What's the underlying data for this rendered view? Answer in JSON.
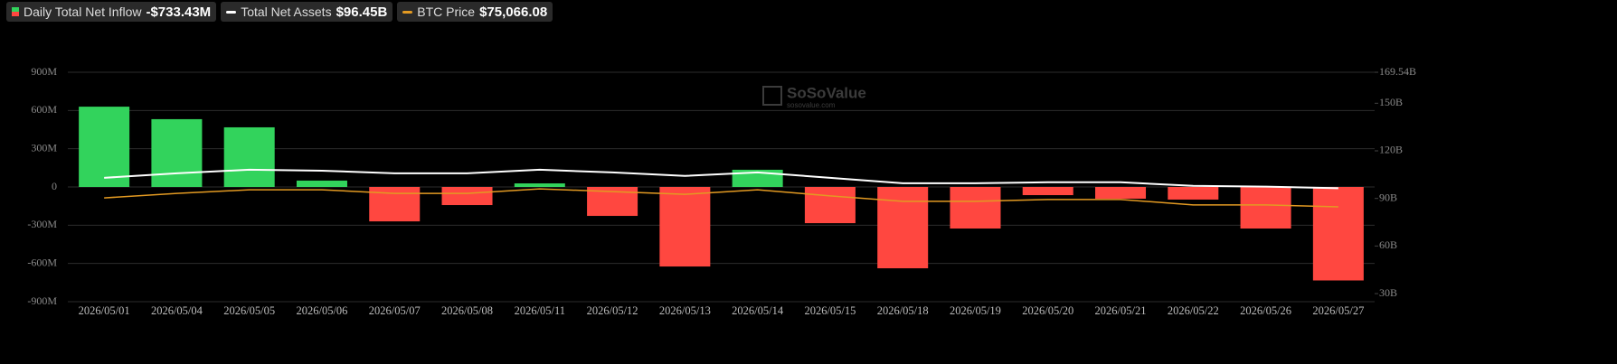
{
  "chart_data": {
    "type": "bar",
    "watermark": {
      "name": "SoSoValue",
      "url": "sosovalue.com"
    },
    "categories": [
      "2026/05/01",
      "2026/05/04",
      "2026/05/05",
      "2026/05/06",
      "2026/05/07",
      "2026/05/08",
      "2026/05/11",
      "2026/05/12",
      "2026/05/13",
      "2026/05/14",
      "2026/05/15",
      "2026/05/18",
      "2026/05/19",
      "2026/05/20",
      "2026/05/21",
      "2026/05/22",
      "2026/05/26",
      "2026/05/27"
    ],
    "series": [
      {
        "name": "Daily Total Net Inflow",
        "current": "-$733.43M",
        "type": "bar",
        "color": "#32d35c",
        "negative_color": "#ff4740",
        "values": [
          630,
          532,
          468,
          50,
          -270,
          -142,
          28,
          -227,
          -624,
          135,
          -284,
          -638,
          -326,
          -64,
          -92,
          -99,
          -326,
          -733.43
        ]
      },
      {
        "name": "Total Net Assets",
        "current": "$96.45B",
        "type": "line",
        "color": "#ffffff",
        "axis": "y2",
        "values": [
          103.0,
          105.8,
          108.1,
          107.5,
          105.8,
          105.8,
          108.1,
          106.4,
          104.2,
          106.4,
          103.0,
          99.6,
          99.6,
          100.2,
          100.2,
          97.9,
          97.4,
          96.45
        ]
      },
      {
        "name": "BTC Price",
        "current": "$75,066.08",
        "type": "line",
        "color": "#e39a22",
        "axis": "y3",
        "values": [
          79000,
          81000,
          82600,
          82600,
          81000,
          81000,
          83000,
          81800,
          80600,
          82600,
          79900,
          77500,
          77500,
          78300,
          78300,
          75900,
          75900,
          75066.08
        ]
      }
    ],
    "ylim": [
      -900,
      900
    ],
    "yticks": [
      {
        "value": 900,
        "label": "900M"
      },
      {
        "value": 600,
        "label": "600M"
      },
      {
        "value": 300,
        "label": "300M"
      },
      0,
      {
        "value": -300,
        "label": "-300M"
      },
      {
        "value": -600,
        "label": "-600M"
      },
      {
        "value": -900,
        "label": "-900M"
      }
    ],
    "y2lim": [
      24.9,
      169.54
    ],
    "y2ticks": [
      {
        "value": 169.54,
        "label": "169.54B"
      },
      {
        "value": 150,
        "label": "150B"
      },
      {
        "value": 120,
        "label": "120B"
      },
      {
        "value": 90,
        "label": "90B"
      },
      {
        "value": 60,
        "label": "60B"
      },
      {
        "value": 30,
        "label": "30B"
      }
    ],
    "y3lim": [
      33000,
      134700
    ],
    "grid": true
  }
}
